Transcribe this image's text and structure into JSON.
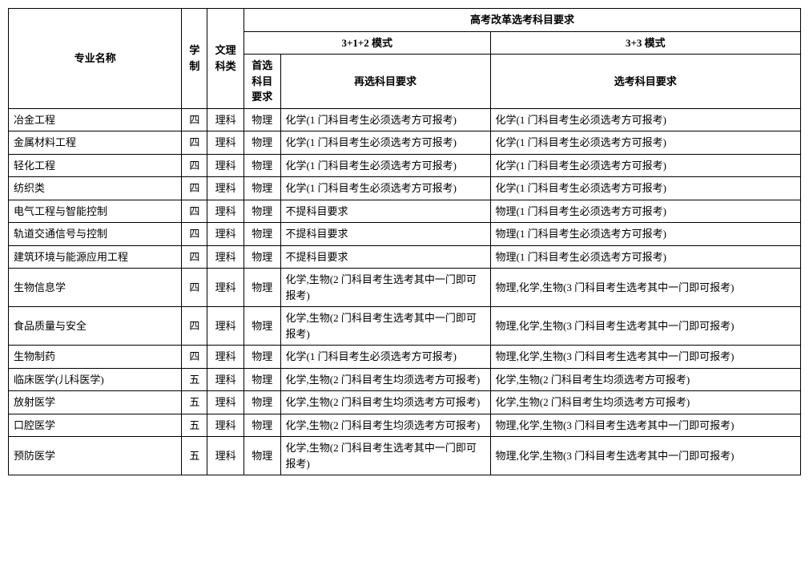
{
  "headers": {
    "major": "专业名称",
    "duration": "学制",
    "category": "文理科类",
    "reform": "高考改革选考科目要求",
    "mode312": "3+1+2 模式",
    "mode33": "3+3 模式",
    "primary": "首选科目要求",
    "secondary": "再选科目要求",
    "req33": "选考科目要求"
  },
  "rows": [
    {
      "major": "冶金工程",
      "dur": "四",
      "cat": "理科",
      "pri": "物理",
      "sec": "化学(1 门科目考生必须选考方可报考)",
      "r33": "化学(1 门科目考生必须选考方可报考)"
    },
    {
      "major": "金属材料工程",
      "dur": "四",
      "cat": "理科",
      "pri": "物理",
      "sec": "化学(1 门科目考生必须选考方可报考)",
      "r33": "化学(1 门科目考生必须选考方可报考)"
    },
    {
      "major": "轻化工程",
      "dur": "四",
      "cat": "理科",
      "pri": "物理",
      "sec": "化学(1 门科目考生必须选考方可报考)",
      "r33": "化学(1 门科目考生必须选考方可报考)"
    },
    {
      "major": "纺织类",
      "dur": "四",
      "cat": "理科",
      "pri": "物理",
      "sec": "化学(1 门科目考生必须选考方可报考)",
      "r33": "化学(1 门科目考生必须选考方可报考)"
    },
    {
      "major": "电气工程与智能控制",
      "dur": "四",
      "cat": "理科",
      "pri": "物理",
      "sec": "不提科目要求",
      "r33": "物理(1 门科目考生必须选考方可报考)"
    },
    {
      "major": "轨道交通信号与控制",
      "dur": "四",
      "cat": "理科",
      "pri": "物理",
      "sec": "不提科目要求",
      "r33": "物理(1 门科目考生必须选考方可报考)"
    },
    {
      "major": "建筑环境与能源应用工程",
      "dur": "四",
      "cat": "理科",
      "pri": "物理",
      "sec": "不提科目要求",
      "r33": "物理(1 门科目考生必须选考方可报考)"
    },
    {
      "major": "生物信息学",
      "dur": "四",
      "cat": "理科",
      "pri": "物理",
      "sec": "化学,生物(2 门科目考生选考其中一门即可报考)",
      "r33": "物理,化学,生物(3 门科目考生选考其中一门即可报考)"
    },
    {
      "major": "食品质量与安全",
      "dur": "四",
      "cat": "理科",
      "pri": "物理",
      "sec": "化学,生物(2 门科目考生选考其中一门即可报考)",
      "r33": "物理,化学,生物(3 门科目考生选考其中一门即可报考)"
    },
    {
      "major": "生物制药",
      "dur": "四",
      "cat": "理科",
      "pri": "物理",
      "sec": "化学(1 门科目考生必须选考方可报考)",
      "r33": "物理,化学,生物(3 门科目考生选考其中一门即可报考)"
    },
    {
      "major": "临床医学(儿科医学)",
      "dur": "五",
      "cat": "理科",
      "pri": "物理",
      "sec": "化学,生物(2 门科目考生均须选考方可报考)",
      "r33": "化学,生物(2 门科目考生均须选考方可报考)"
    },
    {
      "major": "放射医学",
      "dur": "五",
      "cat": "理科",
      "pri": "物理",
      "sec": "化学,生物(2 门科目考生均须选考方可报考)",
      "r33": "化学,生物(2 门科目考生均须选考方可报考)"
    },
    {
      "major": "口腔医学",
      "dur": "五",
      "cat": "理科",
      "pri": "物理",
      "sec": "化学,生物(2 门科目考生均须选考方可报考)",
      "r33": "物理,化学,生物(3 门科目考生选考其中一门即可报考)"
    },
    {
      "major": "预防医学",
      "dur": "五",
      "cat": "理科",
      "pri": "物理",
      "sec": "化学,生物(2 门科目考生选考其中一门即可报考)",
      "r33": "物理,化学,生物(3 门科目考生选考其中一门即可报考)"
    }
  ]
}
